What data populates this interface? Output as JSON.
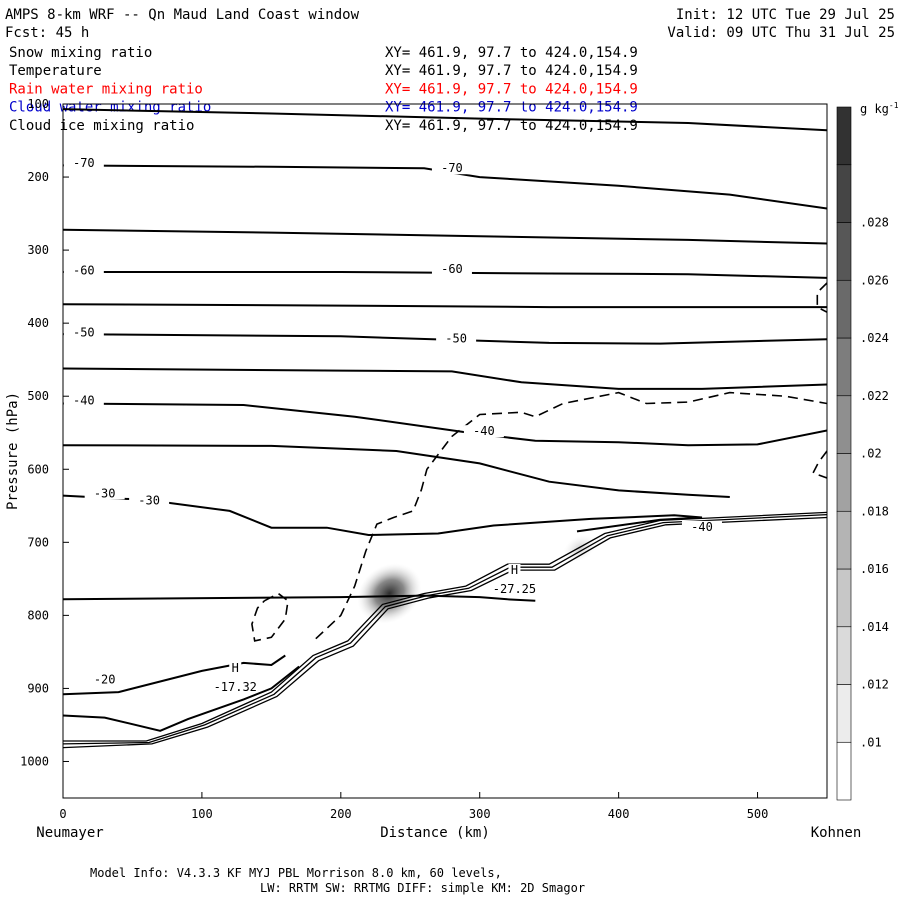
{
  "header": {
    "title": "AMPS 8-km WRF -- Qn Maud Land Coast window",
    "init": "Init: 12 UTC Tue 29 Jul 25",
    "fcst": "Fcst:   45 h",
    "valid": "Valid: 09 UTC Thu 31 Jul 25"
  },
  "legend": [
    {
      "name": "Snow mixing ratio",
      "xy": "XY= 461.9, 97.7 to 424.0,154.9",
      "color": "#000000"
    },
    {
      "name": "Temperature",
      "xy": "XY= 461.9, 97.7 to 424.0,154.9",
      "color": "#000000"
    },
    {
      "name": "Rain water mixing ratio",
      "xy": "XY= 461.9, 97.7 to 424.0,154.9",
      "color": "#ff0000"
    },
    {
      "name": "Cloud water mixing ratio",
      "xy": "XY= 461.9, 97.7 to 424.0,154.9",
      "color": "#0000cc"
    },
    {
      "name": "Cloud ice mixing ratio",
      "xy": "XY= 461.9, 97.7 to 424.0,154.9",
      "color": "#000000"
    }
  ],
  "footer": {
    "line1": "Model Info: V4.3.3   KF      MYJ PBL  Morrison             8.0 km,  60 levels,",
    "line2": "LW: RRTM SW: RRTMG   DIFF: simple KM: 2D Smagor"
  },
  "chart_data": {
    "type": "cross-section",
    "xlabel": "Distance (km)",
    "ylabel": "Pressure (hPa)",
    "xlim": [
      0,
      550
    ],
    "ylim": [
      1050,
      100
    ],
    "x_ticks": [
      0,
      100,
      200,
      300,
      400,
      500
    ],
    "y_ticks": [
      100,
      200,
      300,
      400,
      500,
      600,
      700,
      800,
      900,
      1000
    ],
    "x_end_labels": {
      "left": "Neumayer",
      "right": "Kohnen"
    },
    "colorbar": {
      "unit": "g kg",
      "unit_exp": "-1",
      "ticks": [
        ".01",
        ".012",
        ".014",
        ".016",
        ".018",
        ".02",
        ".022",
        ".024",
        ".026",
        ".028"
      ]
    },
    "contour_labels": [
      {
        "text": "-70",
        "x": 15,
        "p": 185
      },
      {
        "text": "-70",
        "x": 280,
        "p": 192
      },
      {
        "text": "-60",
        "x": 15,
        "p": 332
      },
      {
        "text": "-60",
        "x": 280,
        "p": 330
      },
      {
        "text": "-50",
        "x": 15,
        "p": 417
      },
      {
        "text": "-50",
        "x": 283,
        "p": 425
      },
      {
        "text": "-40",
        "x": 15,
        "p": 510
      },
      {
        "text": "-40",
        "x": 303,
        "p": 552
      },
      {
        "text": "-40",
        "x": 460,
        "p": 683
      },
      {
        "text": "-30",
        "x": 30,
        "p": 637
      },
      {
        "text": "-30",
        "x": 62,
        "p": 647
      },
      {
        "text": "-20",
        "x": 30,
        "p": 892
      },
      {
        "text": "H",
        "x": 124,
        "p": 876
      },
      {
        "text": "-17.32",
        "x": 124,
        "p": 902
      },
      {
        "text": "H",
        "x": 325,
        "p": 742
      },
      {
        "text": "-27.25",
        "x": 325,
        "p": 768
      }
    ],
    "temperature_contours": [
      [
        [
          0,
          107
        ],
        [
          150,
          113
        ],
        [
          300,
          120
        ],
        [
          450,
          126
        ],
        [
          550,
          136
        ]
      ],
      [
        [
          0,
          184
        ],
        [
          150,
          186
        ],
        [
          260,
          188
        ],
        [
          300,
          200
        ],
        [
          400,
          212
        ],
        [
          480,
          224
        ],
        [
          550,
          243
        ]
      ],
      [
        [
          0,
          272
        ],
        [
          150,
          276
        ],
        [
          300,
          281
        ],
        [
          450,
          286
        ],
        [
          550,
          291
        ]
      ],
      [
        [
          0,
          330
        ],
        [
          200,
          330
        ],
        [
          350,
          332
        ],
        [
          450,
          333
        ],
        [
          550,
          338
        ]
      ],
      [
        [
          0,
          374
        ],
        [
          200,
          376
        ],
        [
          350,
          378
        ],
        [
          450,
          378
        ],
        [
          550,
          378
        ]
      ],
      [
        [
          0,
          415
        ],
        [
          200,
          418
        ],
        [
          350,
          427
        ],
        [
          430,
          428
        ],
        [
          550,
          422
        ]
      ],
      [
        [
          0,
          462
        ],
        [
          200,
          465
        ],
        [
          280,
          466
        ],
        [
          330,
          481
        ],
        [
          400,
          490
        ],
        [
          460,
          490
        ],
        [
          550,
          484
        ]
      ],
      [
        [
          0,
          510
        ],
        [
          130,
          512
        ],
        [
          210,
          528
        ],
        [
          300,
          552
        ],
        [
          340,
          561
        ],
        [
          400,
          563
        ],
        [
          450,
          567
        ],
        [
          500,
          566
        ],
        [
          550,
          547
        ]
      ],
      [
        [
          0,
          567
        ],
        [
          150,
          568
        ],
        [
          240,
          575
        ],
        [
          300,
          592
        ],
        [
          350,
          617
        ],
        [
          400,
          629
        ],
        [
          450,
          635
        ],
        [
          480,
          638
        ]
      ],
      [
        [
          0,
          636
        ],
        [
          60,
          642
        ],
        [
          120,
          657
        ],
        [
          150,
          680
        ],
        [
          190,
          680
        ],
        [
          220,
          690
        ],
        [
          270,
          688
        ],
        [
          310,
          677
        ],
        [
          380,
          668
        ],
        [
          440,
          663
        ],
        [
          460,
          666
        ],
        [
          430,
          669
        ],
        [
          370,
          685
        ]
      ],
      [
        [
          0,
          778
        ],
        [
          200,
          775
        ],
        [
          260,
          773
        ],
        [
          300,
          775
        ],
        [
          320,
          778
        ],
        [
          340,
          780
        ]
      ],
      [
        [
          0,
          908
        ],
        [
          40,
          905
        ],
        [
          100,
          876
        ],
        [
          130,
          865
        ],
        [
          150,
          868
        ],
        [
          160,
          855
        ]
      ],
      [
        [
          0,
          937
        ],
        [
          30,
          940
        ],
        [
          70,
          958
        ],
        [
          90,
          942
        ],
        [
          130,
          915
        ],
        [
          150,
          900
        ],
        [
          170,
          870
        ]
      ]
    ],
    "terrain_contours": [
      [
        [
          0,
          972
        ],
        [
          60,
          972
        ],
        [
          100,
          948
        ],
        [
          150,
          905
        ],
        [
          180,
          855
        ],
        [
          205,
          835
        ],
        [
          230,
          785
        ],
        [
          260,
          770
        ],
        [
          290,
          760
        ],
        [
          320,
          730
        ],
        [
          350,
          730
        ],
        [
          390,
          688
        ],
        [
          430,
          670
        ],
        [
          550,
          659
        ]
      ],
      [
        [
          0,
          976
        ],
        [
          62,
          974
        ],
        [
          102,
          950
        ],
        [
          152,
          908
        ],
        [
          182,
          858
        ],
        [
          207,
          838
        ],
        [
          232,
          788
        ],
        [
          262,
          773
        ],
        [
          292,
          763
        ],
        [
          322,
          734
        ],
        [
          352,
          734
        ],
        [
          392,
          691
        ],
        [
          432,
          673
        ],
        [
          550,
          662
        ]
      ],
      [
        [
          0,
          981
        ],
        [
          64,
          976
        ],
        [
          104,
          953
        ],
        [
          154,
          911
        ],
        [
          184,
          862
        ],
        [
          209,
          842
        ],
        [
          234,
          791
        ],
        [
          264,
          776
        ],
        [
          294,
          766
        ],
        [
          324,
          738
        ],
        [
          354,
          738
        ],
        [
          394,
          694
        ],
        [
          434,
          676
        ],
        [
          550,
          666
        ]
      ]
    ],
    "dashed_contours": [
      [
        [
          182,
          832
        ],
        [
          200,
          800
        ],
        [
          210,
          760
        ],
        [
          218,
          712
        ],
        [
          226,
          675
        ],
        [
          238,
          666
        ],
        [
          252,
          657
        ],
        [
          258,
          628
        ],
        [
          262,
          600
        ],
        [
          280,
          555
        ],
        [
          300,
          525
        ],
        [
          330,
          522
        ],
        [
          340,
          528
        ],
        [
          360,
          510
        ],
        [
          400,
          495
        ],
        [
          420,
          510
        ],
        [
          450,
          508
        ],
        [
          480,
          495
        ],
        [
          520,
          500
        ],
        [
          550,
          510
        ]
      ],
      [
        [
          145,
          780
        ],
        [
          155,
          770
        ],
        [
          162,
          780
        ],
        [
          160,
          805
        ],
        [
          150,
          830
        ],
        [
          138,
          835
        ],
        [
          136,
          812
        ],
        [
          140,
          790
        ],
        [
          145,
          780
        ]
      ],
      [
        [
          550,
          575
        ],
        [
          544,
          590
        ],
        [
          540,
          605
        ],
        [
          550,
          612
        ]
      ],
      [
        [
          550,
          345
        ],
        [
          543,
          358
        ],
        [
          543,
          378
        ],
        [
          550,
          385
        ]
      ]
    ],
    "shaded_max": [
      {
        "x": 235,
        "p": 770,
        "value": 0.029
      },
      {
        "x": 372,
        "p": 708,
        "value": 0.011
      }
    ]
  }
}
